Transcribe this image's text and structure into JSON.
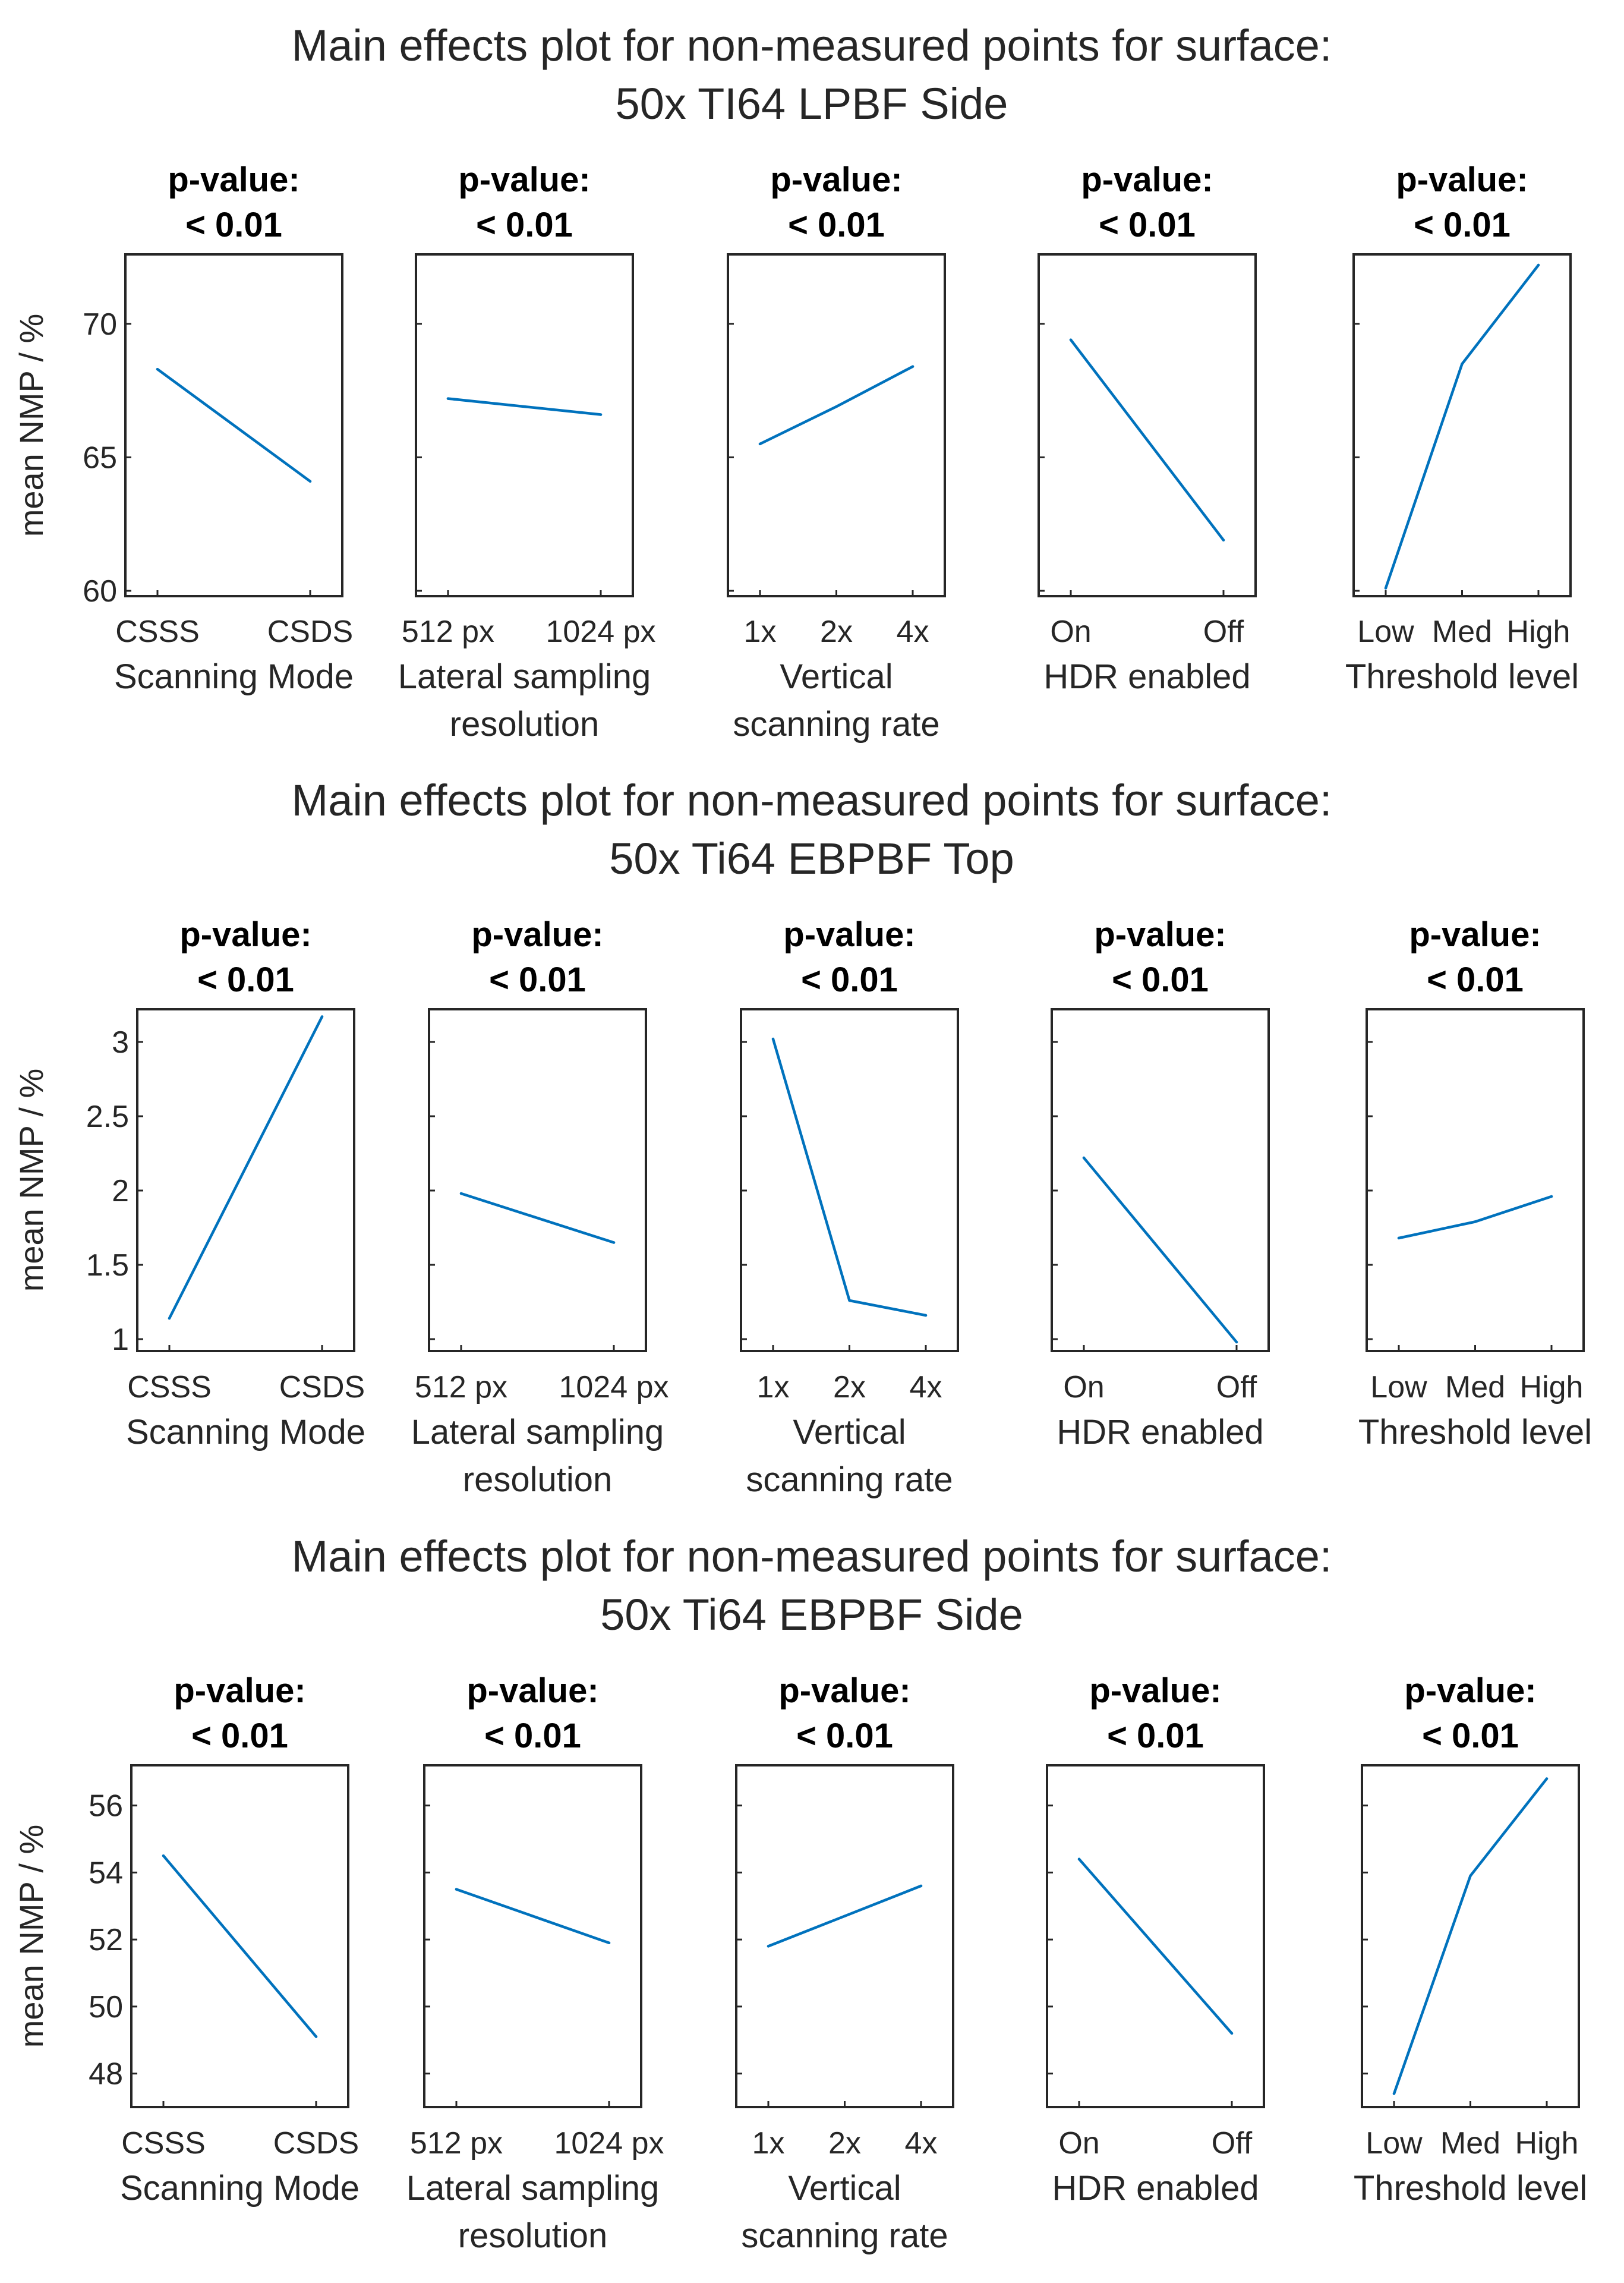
{
  "colors": {
    "series": "#0072BD",
    "axis": "#262626",
    "background": "#ffffff"
  },
  "chart_data": [
    {
      "type": "line",
      "title": [
        "Main effects plot for non-measured points for surface:",
        "50x TI64 LPBF Side"
      ],
      "ylabel": "mean NMP / %",
      "ylim": [
        59.8,
        72.6
      ],
      "yticks": [
        60,
        65,
        70
      ],
      "panels": [
        {
          "pvalue_label": "p-value:",
          "pvalue": "< 0.01",
          "categories": [
            "CSSS",
            "CSDS"
          ],
          "values": [
            68.3,
            64.1
          ],
          "xlabel": [
            "Scanning Mode"
          ]
        },
        {
          "pvalue_label": "p-value:",
          "pvalue": "< 0.01",
          "categories": [
            "512 px",
            "1024 px"
          ],
          "values": [
            67.2,
            66.6
          ],
          "xlabel": [
            "Lateral sampling",
            "resolution"
          ]
        },
        {
          "pvalue_label": "p-value:",
          "pvalue": "< 0.01",
          "categories": [
            "1x",
            "2x",
            "4x"
          ],
          "values": [
            65.5,
            66.9,
            68.4
          ],
          "xlabel": [
            "Vertical",
            "scanning rate"
          ]
        },
        {
          "pvalue_label": "p-value:",
          "pvalue": "< 0.01",
          "categories": [
            "On",
            "Off"
          ],
          "values": [
            69.4,
            61.9
          ],
          "xlabel": [
            "HDR enabled"
          ]
        },
        {
          "pvalue_label": "p-value:",
          "pvalue": "< 0.01",
          "categories": [
            "Low",
            "Med",
            "High"
          ],
          "values": [
            60.1,
            68.5,
            72.2
          ],
          "xlabel": [
            "Threshold level"
          ]
        }
      ]
    },
    {
      "type": "line",
      "title": [
        "Main effects plot for non-measured points for surface:",
        "50x Ti64 EBPBF Top"
      ],
      "ylabel": "mean NMP / %",
      "ylim": [
        0.92,
        3.22
      ],
      "yticks": [
        1,
        1.5,
        2,
        2.5,
        3
      ],
      "panels": [
        {
          "pvalue_label": "p-value:",
          "pvalue": "< 0.01",
          "categories": [
            "CSSS",
            "CSDS"
          ],
          "values": [
            1.14,
            3.17
          ],
          "xlabel": [
            "Scanning Mode"
          ]
        },
        {
          "pvalue_label": "p-value:",
          "pvalue": "< 0.01",
          "categories": [
            "512 px",
            "1024 px"
          ],
          "values": [
            1.98,
            1.65
          ],
          "xlabel": [
            "Lateral sampling",
            "resolution"
          ]
        },
        {
          "pvalue_label": "p-value:",
          "pvalue": "< 0.01",
          "categories": [
            "1x",
            "2x",
            "4x"
          ],
          "values": [
            3.02,
            1.26,
            1.16
          ],
          "xlabel": [
            "Vertical",
            "scanning rate"
          ]
        },
        {
          "pvalue_label": "p-value:",
          "pvalue": "< 0.01",
          "categories": [
            "On",
            "Off"
          ],
          "values": [
            2.22,
            0.98
          ],
          "xlabel": [
            "HDR enabled"
          ]
        },
        {
          "pvalue_label": "p-value:",
          "pvalue": "< 0.01",
          "categories": [
            "Low",
            "Med",
            "High"
          ],
          "values": [
            1.68,
            1.79,
            1.96
          ],
          "xlabel": [
            "Threshold level"
          ]
        }
      ]
    },
    {
      "type": "line",
      "title": [
        "Main effects plot for non-measured points for surface:",
        "50x Ti64 EBPBF Side"
      ],
      "ylabel": "mean NMP / %",
      "ylim": [
        47.0,
        57.2
      ],
      "yticks": [
        48,
        50,
        52,
        54,
        56
      ],
      "panels": [
        {
          "pvalue_label": "p-value:",
          "pvalue": "< 0.01",
          "categories": [
            "CSSS",
            "CSDS"
          ],
          "values": [
            54.5,
            49.1
          ],
          "xlabel": [
            "Scanning Mode"
          ]
        },
        {
          "pvalue_label": "p-value:",
          "pvalue": "< 0.01",
          "categories": [
            "512 px",
            "1024 px"
          ],
          "values": [
            53.5,
            51.9
          ],
          "xlabel": [
            "Lateral sampling",
            "resolution"
          ]
        },
        {
          "pvalue_label": "p-value:",
          "pvalue": "< 0.01",
          "categories": [
            "1x",
            "2x",
            "4x"
          ],
          "values": [
            51.8,
            52.7,
            53.6
          ],
          "xlabel": [
            "Vertical",
            "scanning rate"
          ]
        },
        {
          "pvalue_label": "p-value:",
          "pvalue": "< 0.01",
          "categories": [
            "On",
            "Off"
          ],
          "values": [
            54.4,
            49.2
          ],
          "xlabel": [
            "HDR enabled"
          ]
        },
        {
          "pvalue_label": "p-value:",
          "pvalue": "< 0.01",
          "categories": [
            "Low",
            "Med",
            "High"
          ],
          "values": [
            47.4,
            53.9,
            56.8
          ],
          "xlabel": [
            "Threshold level"
          ]
        }
      ]
    }
  ]
}
